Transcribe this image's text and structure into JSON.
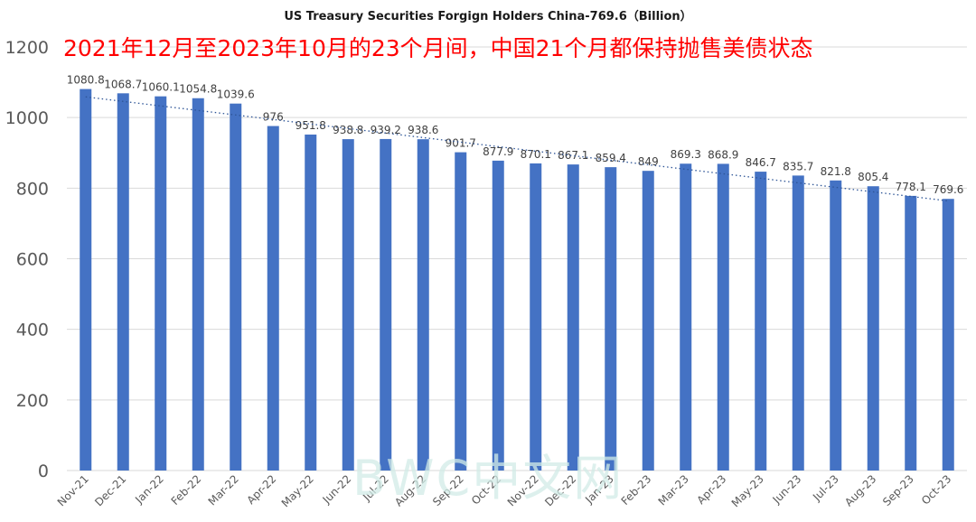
{
  "chart_data": {
    "type": "bar",
    "title": "US Treasury Securities Forgign Holders China-769.6（Billion）",
    "annotation": "2021年12月至2023年10月的23个月间，中国21个月都保持抛售美债状态",
    "watermark": "BWC中文网",
    "categories": [
      "Nov-21",
      "Dec-21",
      "Jan-22",
      "Feb-22",
      "Mar-22",
      "Apr-22",
      "May-22",
      "Jun-22",
      "Jul-22",
      "Aug-22",
      "Sep-22",
      "Oct-22",
      "Nov-22",
      "Dec-22",
      "Jan-23",
      "Feb-23",
      "Mar-23",
      "Apr-23",
      "May-23",
      "Jun-23",
      "Jul-23",
      "Aug-23",
      "Sep-23",
      "Oct-23"
    ],
    "values": [
      1080.8,
      1068.7,
      1060.1,
      1054.8,
      1039.6,
      976,
      951.8,
      938.8,
      939.2,
      938.6,
      901.7,
      877.9,
      870.1,
      867.1,
      859.4,
      849,
      869.3,
      868.9,
      846.7,
      835.7,
      821.8,
      805.4,
      778.1,
      769.6
    ],
    "value_labels": [
      "1080.8",
      "1068.7",
      "1060.1",
      "1054.8",
      "1039.6",
      "976",
      "951.8",
      "938.8",
      "939.2",
      "938.6",
      "901.7",
      "877.9",
      "870.1",
      "867.1",
      "859.4",
      "849",
      "869.3",
      "868.9",
      "846.7",
      "835.7",
      "821.8",
      "805.4",
      "778.1",
      "769.6"
    ],
    "ylim": [
      0,
      1200
    ],
    "yticks": [
      "0",
      "200",
      "400",
      "600",
      "800",
      "1000",
      "1200"
    ],
    "trendline": {
      "type": "linear",
      "style": "dotted"
    },
    "grid": true,
    "colors": {
      "bar": "#4472c4",
      "trendline": "#2e5597",
      "grid": "#d9d9d9",
      "annotation": "#ff0000"
    }
  }
}
